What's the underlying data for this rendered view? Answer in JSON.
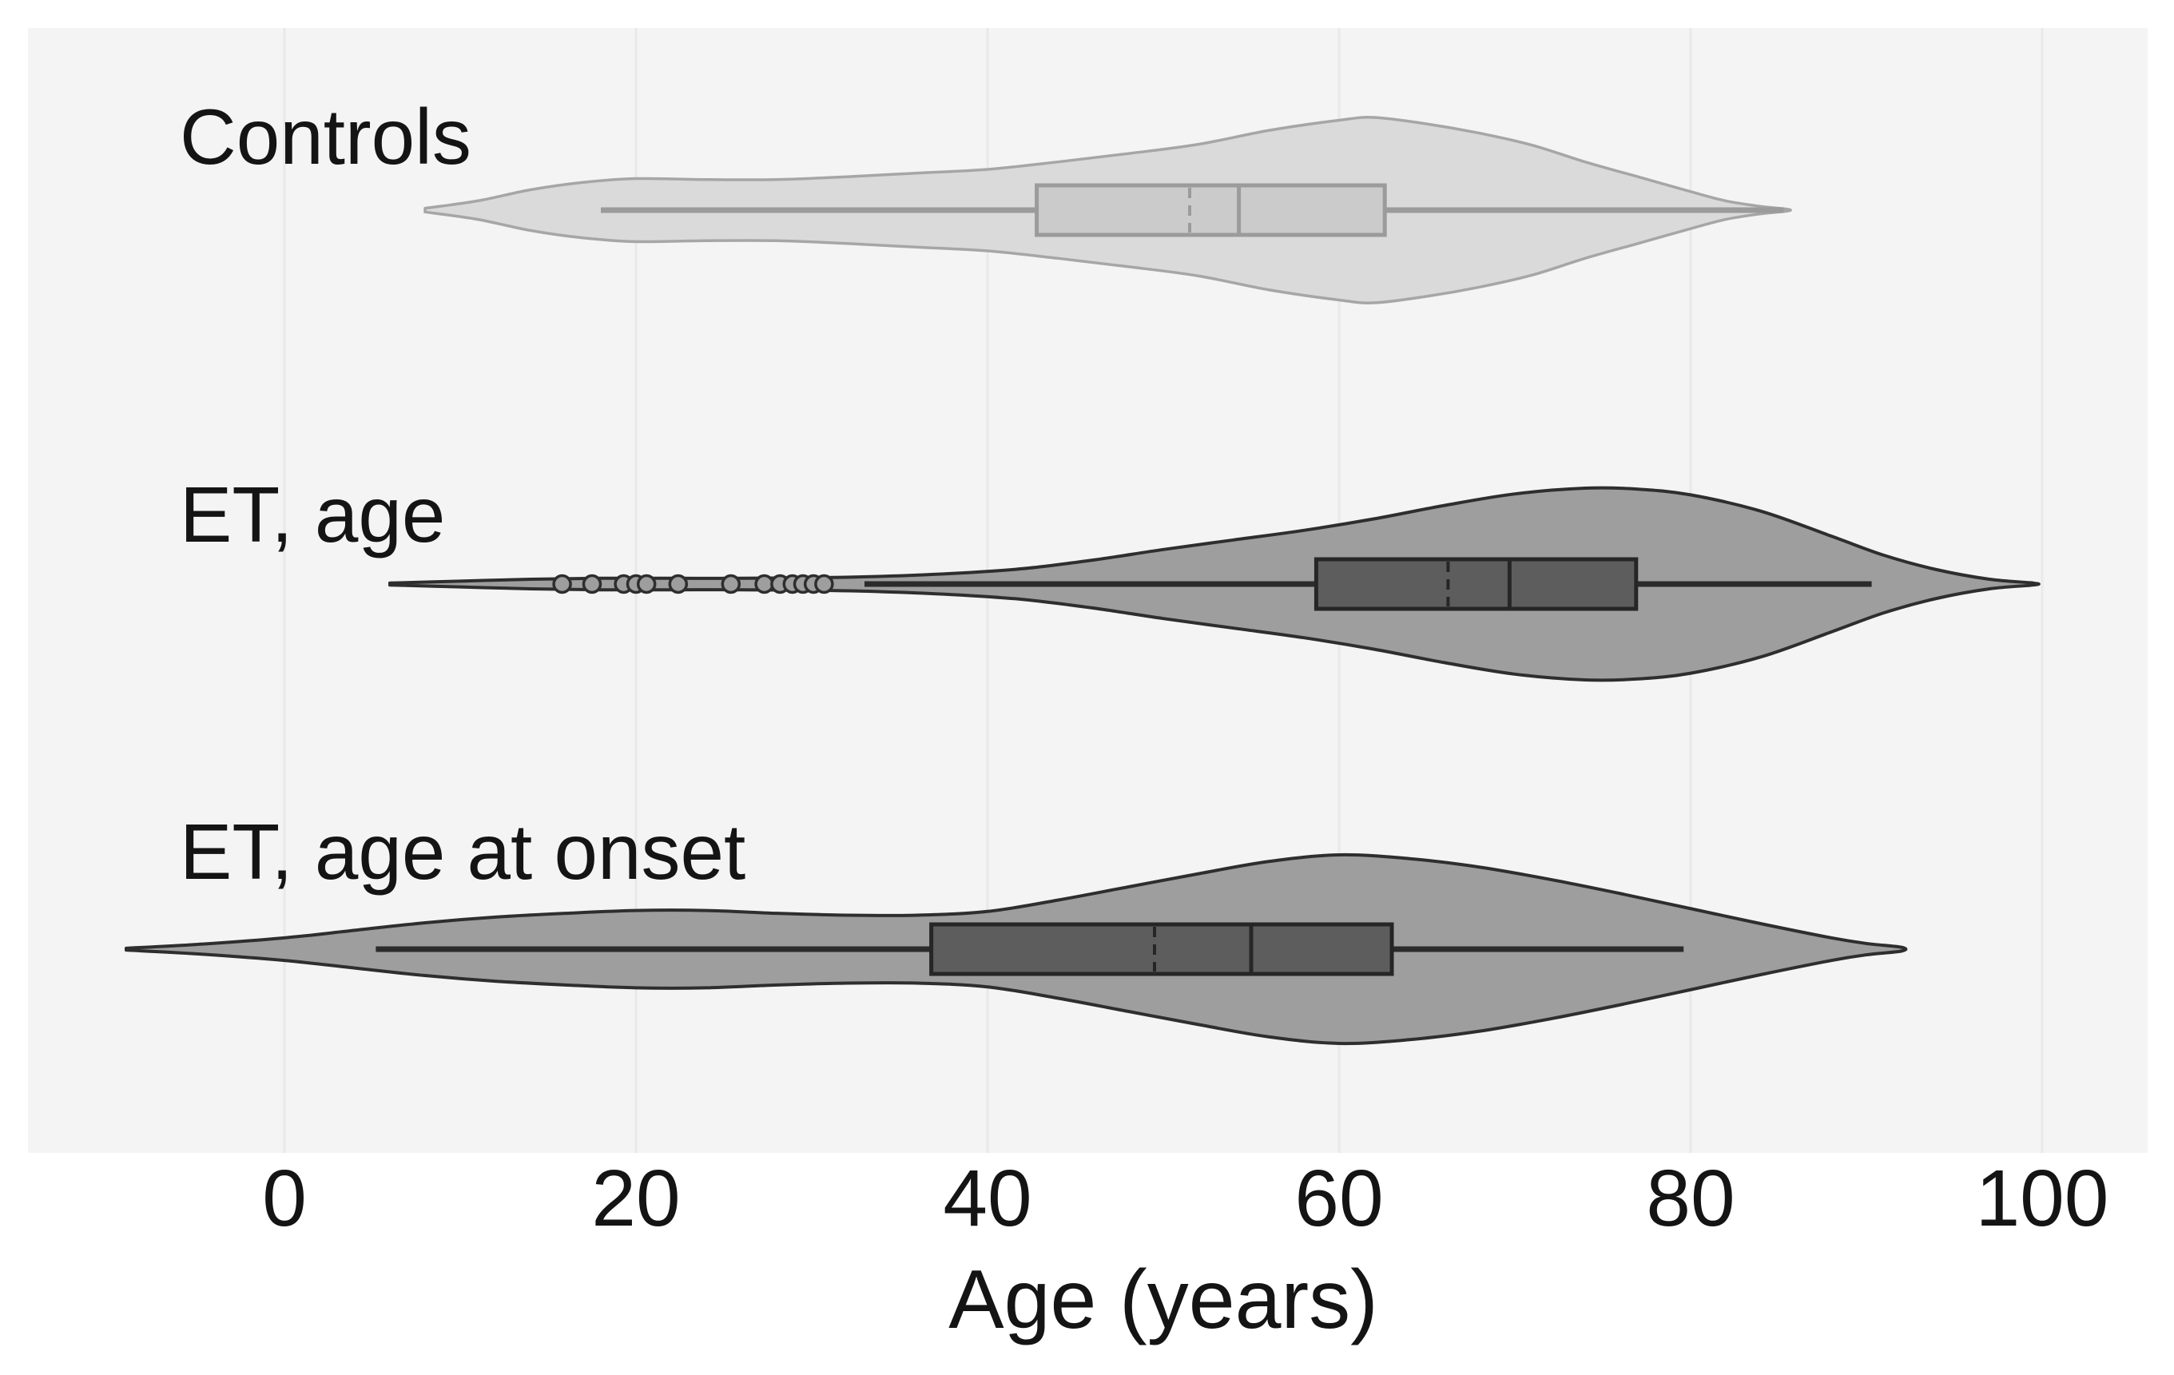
{
  "chart_data": {
    "type": "violin",
    "orientation": "horizontal",
    "x_axis": {
      "label": "Age (years)",
      "ticks": [
        0,
        20,
        40,
        60,
        80,
        100
      ],
      "range": [
        -14.5,
        106
      ],
      "grid": true
    },
    "colors": {
      "page_background": "#ffffff",
      "panel_background": "#f5f4f4",
      "gridline": "#e9e9e9",
      "text": "#141414"
    },
    "series": [
      {
        "name": "Controls",
        "stats": {
          "whisker_lo": 18,
          "q1": 42.8,
          "median": 54.3,
          "mean": 51.5,
          "q3": 62.6,
          "whisker_hi": 85.3
        },
        "outliers": [],
        "kde": [
          [
            8,
            0.02
          ],
          [
            11,
            0.1
          ],
          [
            14,
            0.22
          ],
          [
            17,
            0.3
          ],
          [
            20,
            0.34
          ],
          [
            24,
            0.33
          ],
          [
            28,
            0.33
          ],
          [
            32,
            0.36
          ],
          [
            36,
            0.4
          ],
          [
            40,
            0.44
          ],
          [
            44,
            0.52
          ],
          [
            48,
            0.61
          ],
          [
            52,
            0.71
          ],
          [
            56,
            0.86
          ],
          [
            60,
            0.97
          ],
          [
            62,
            1.0
          ],
          [
            65,
            0.93
          ],
          [
            68,
            0.83
          ],
          [
            71,
            0.7
          ],
          [
            74,
            0.52
          ],
          [
            77,
            0.36
          ],
          [
            80,
            0.2
          ],
          [
            82,
            0.1
          ],
          [
            84,
            0.04
          ],
          [
            85.5,
            0.01
          ]
        ],
        "style": {
          "fill": "#dadada",
          "stroke": "#a6a6a6",
          "box_fill": "#cbcbcb",
          "box_stroke": "#9b9b9b",
          "line": "#9b9b9b"
        }
      },
      {
        "name": "ET, age",
        "stats": {
          "whisker_lo": 33,
          "q1": 58.7,
          "median": 69.7,
          "mean": 66.2,
          "q3": 76.9,
          "whisker_hi": 90.3
        },
        "outliers": [
          15.8,
          17.5,
          19.3,
          20.0,
          20.6,
          22.4,
          25.4,
          27.3,
          28.2,
          28.9,
          29.5,
          30.1,
          30.7
        ],
        "kde": [
          [
            6,
            0.01
          ],
          [
            10,
            0.03
          ],
          [
            14,
            0.05
          ],
          [
            18,
            0.06
          ],
          [
            22,
            0.06
          ],
          [
            26,
            0.06
          ],
          [
            30,
            0.065
          ],
          [
            34,
            0.08
          ],
          [
            38,
            0.11
          ],
          [
            42,
            0.16
          ],
          [
            46,
            0.25
          ],
          [
            50,
            0.36
          ],
          [
            54,
            0.46
          ],
          [
            58,
            0.56
          ],
          [
            62,
            0.68
          ],
          [
            66,
            0.82
          ],
          [
            70,
            0.94
          ],
          [
            74,
            1.0
          ],
          [
            77,
            0.99
          ],
          [
            80,
            0.93
          ],
          [
            84,
            0.76
          ],
          [
            88,
            0.5
          ],
          [
            91,
            0.3
          ],
          [
            94,
            0.15
          ],
          [
            97,
            0.05
          ],
          [
            99.5,
            0.01
          ]
        ],
        "style": {
          "fill": "#9e9e9e",
          "stroke": "#2e2e2e",
          "box_fill": "#5d5d5d",
          "box_stroke": "#262626",
          "line": "#2b2b2b"
        }
      },
      {
        "name": "ET, age at onset",
        "stats": {
          "whisker_lo": 5.2,
          "q1": 36.8,
          "median": 55.0,
          "mean": 49.5,
          "q3": 63.0,
          "whisker_hi": 79.6
        },
        "outliers": [],
        "kde": [
          [
            -9,
            0.01
          ],
          [
            -5,
            0.05
          ],
          [
            0,
            0.12
          ],
          [
            4,
            0.2
          ],
          [
            8,
            0.28
          ],
          [
            12,
            0.34
          ],
          [
            16,
            0.38
          ],
          [
            20,
            0.41
          ],
          [
            24,
            0.41
          ],
          [
            28,
            0.38
          ],
          [
            32,
            0.36
          ],
          [
            36,
            0.36
          ],
          [
            40,
            0.4
          ],
          [
            44,
            0.52
          ],
          [
            48,
            0.66
          ],
          [
            52,
            0.8
          ],
          [
            56,
            0.93
          ],
          [
            60,
            1.0
          ],
          [
            64,
            0.96
          ],
          [
            68,
            0.87
          ],
          [
            72,
            0.74
          ],
          [
            76,
            0.59
          ],
          [
            80,
            0.43
          ],
          [
            84,
            0.27
          ],
          [
            88,
            0.12
          ],
          [
            90,
            0.06
          ],
          [
            92,
            0.02
          ]
        ],
        "style": {
          "fill": "#9e9e9e",
          "stroke": "#2e2e2e",
          "box_fill": "#5d5d5d",
          "box_stroke": "#262626",
          "line": "#2b2b2b"
        }
      }
    ]
  }
}
